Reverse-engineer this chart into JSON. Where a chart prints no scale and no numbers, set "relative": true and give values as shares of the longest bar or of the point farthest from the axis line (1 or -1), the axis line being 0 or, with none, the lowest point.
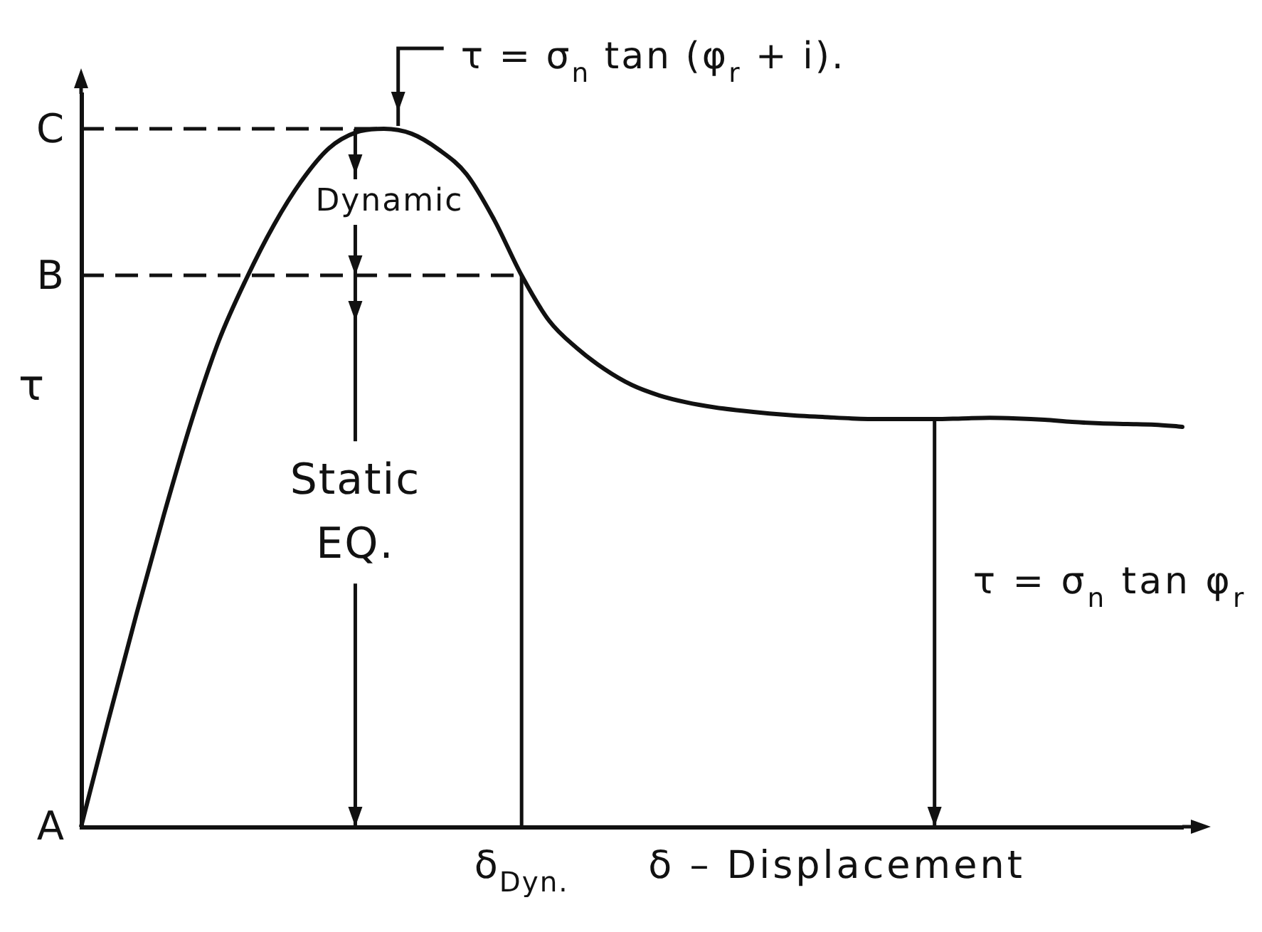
{
  "chart_data": {
    "type": "line",
    "relative": true,
    "xlabel": "δ – Displacement",
    "ylabel": "τ",
    "marker": "none",
    "categories": [
      null,
      null,
      null,
      null,
      null,
      null,
      null,
      null,
      null,
      null,
      null,
      null,
      null,
      null,
      null,
      null,
      null,
      null,
      null,
      null,
      null,
      null,
      null,
      null,
      null,
      null,
      null,
      null,
      null,
      null,
      null,
      null,
      null,
      null,
      null,
      null,
      null,
      null,
      null,
      null,
      null
    ],
    "series": [
      {
        "color": "#111111",
        "values": [
          0,
          0.154,
          0.303,
          0.446,
          0.58,
          0.696,
          0.785,
          0.862,
          0.925,
          0.972,
          0.995,
          1,
          0.993,
          0.97,
          0.935,
          0.87,
          0.79,
          0.725,
          0.686,
          0.656,
          0.633,
          0.618,
          0.608,
          0.601,
          0.596,
          0.592,
          0.589,
          0.587,
          0.585,
          0.584,
          0.584,
          0.584,
          0.585,
          0.586,
          0.585,
          0.583,
          0.58,
          0.578,
          0.577,
          0.576,
          0.573
        ]
      }
    ],
    "ref_lines": [
      {
        "axis": "y",
        "value": 1,
        "label": "C",
        "line_style": "dashed"
      },
      {
        "axis": "y",
        "value": 0.79,
        "label": "B",
        "line_style": "dashed"
      }
    ],
    "annotations": [
      "A",
      "τ = σ$_{n}$ tan (φ$_{r}$ + i).",
      "Dynamic",
      "Static EQ.",
      "τ = σ$_{n}$ tan φ$_{r}$",
      "δ$_{Dyn.}$"
    ]
  }
}
